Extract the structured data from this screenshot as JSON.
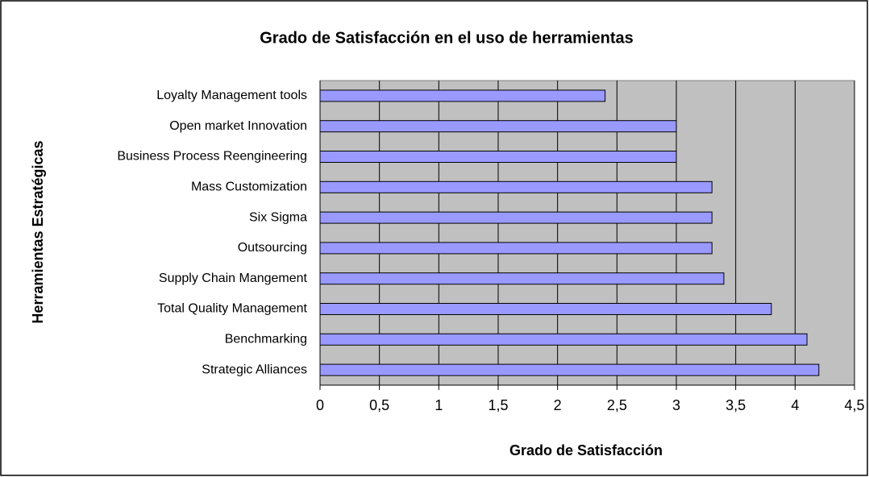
{
  "chart_data": {
    "type": "bar",
    "orientation": "horizontal",
    "title": "Grado de Satisfacción en el uso de herramientas",
    "x_label": "Grado de Satisfacción",
    "y_label": "Herramientas Estratégicas",
    "categories": [
      "Loyalty Management tools",
      "Open market Innovation",
      "Business Process Reengineering",
      "Mass Customization",
      "Six Sigma",
      "Outsourcing",
      "Supply Chain Mangement",
      "Total Quality Management",
      "Benchmarking",
      "Strategic Alliances"
    ],
    "values": [
      2.4,
      3.0,
      3.0,
      3.3,
      3.3,
      3.3,
      3.4,
      3.8,
      4.1,
      4.2
    ],
    "color": "#9999ff",
    "xlim": [
      0,
      4.5
    ],
    "xticks": [
      0,
      {
        "value": 0.5,
        "label": "0,5"
      },
      1,
      {
        "value": 1.5,
        "label": "1,5"
      },
      2,
      {
        "value": 2.5,
        "label": "2,5"
      },
      3,
      {
        "value": 3.5,
        "label": "3,5"
      },
      4,
      {
        "value": 4.5,
        "label": "4,5"
      }
    ],
    "grid": true
  }
}
